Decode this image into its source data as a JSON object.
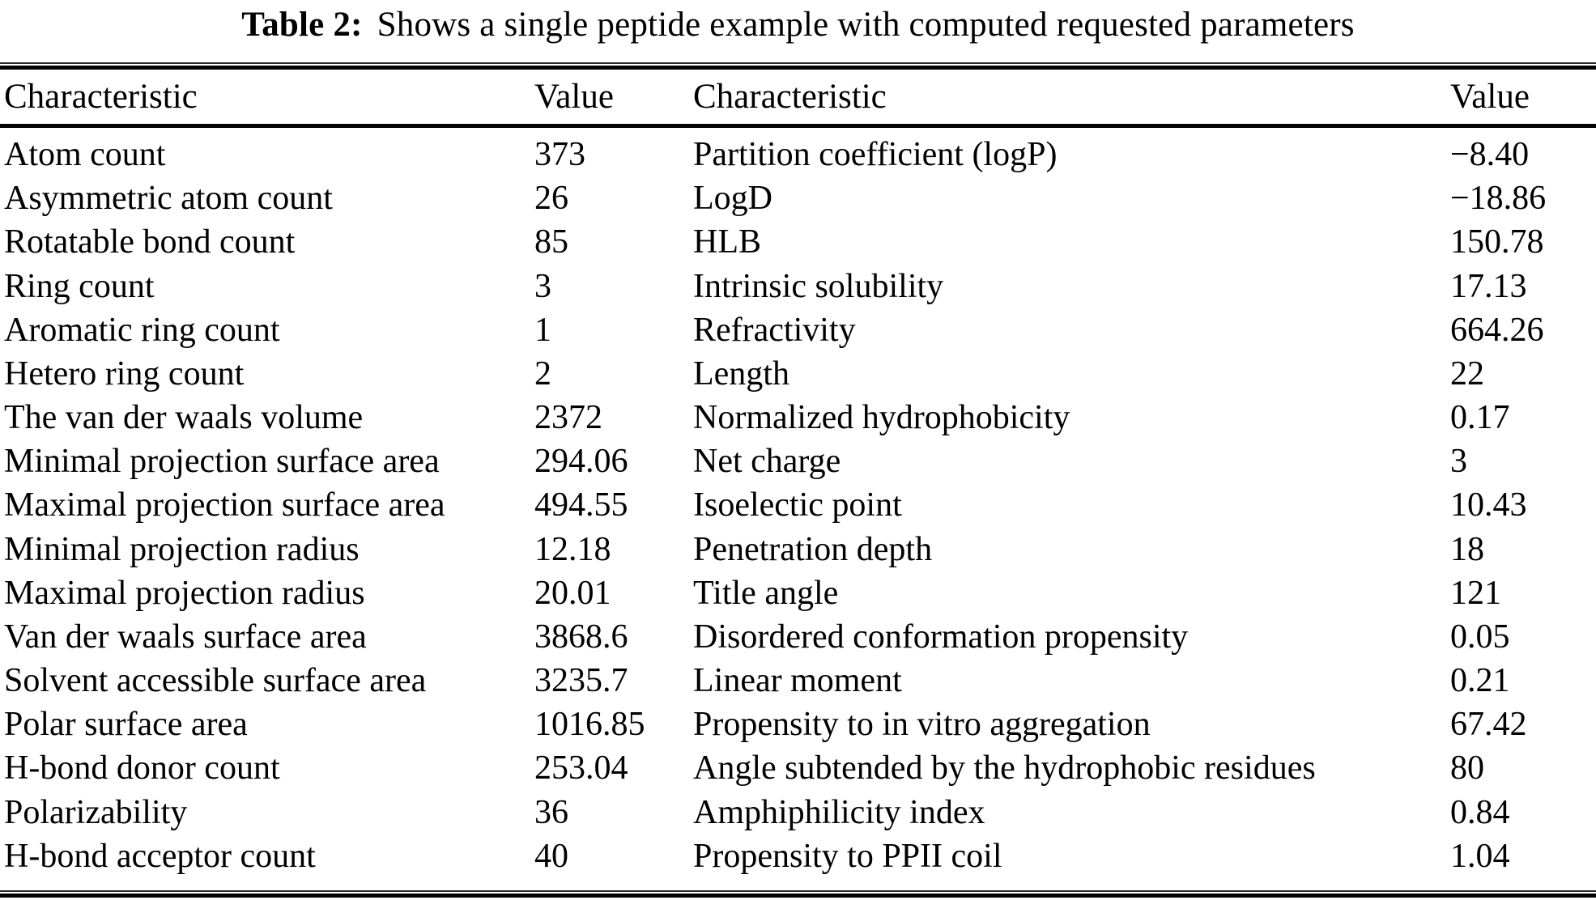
{
  "title": {
    "label": "Table 2:",
    "text": "Shows a single peptide example with computed requested parameters"
  },
  "header": {
    "col1_characteristic": "Characteristic",
    "col1_value": "Value",
    "col2_characteristic": "Characteristic",
    "col2_value": "Value"
  },
  "rows": [
    {
      "c1": "Atom count",
      "v1": "373",
      "c2": "Partition coefficient (logP)",
      "v2": "−8.40"
    },
    {
      "c1": "Asymmetric atom count",
      "v1": "26",
      "c2": "LogD",
      "v2": "−18.86"
    },
    {
      "c1": "Rotatable bond count",
      "v1": "85",
      "c2": "HLB",
      "v2": "150.78"
    },
    {
      "c1": "Ring count",
      "v1": "3",
      "c2": "Intrinsic solubility",
      "v2": "17.13"
    },
    {
      "c1": "Aromatic ring count",
      "v1": "1",
      "c2": "Refractivity",
      "v2": "664.26"
    },
    {
      "c1": "Hetero ring count",
      "v1": "2",
      "c2": "Length",
      "v2": "22"
    },
    {
      "c1": "The van der waals volume",
      "v1": "2372",
      "c2": "Normalized hydrophobicity",
      "v2": "0.17"
    },
    {
      "c1": "Minimal projection surface area",
      "v1": "294.06",
      "c2": "Net charge",
      "v2": "3"
    },
    {
      "c1": "Maximal projection surface area",
      "v1": "494.55",
      "c2": "Isoelectic point",
      "v2": "10.43"
    },
    {
      "c1": "Minimal projection radius",
      "v1": "12.18",
      "c2": "Penetration depth",
      "v2": "18"
    },
    {
      "c1": "Maximal projection radius",
      "v1": "20.01",
      "c2": "Title angle",
      "v2": "121"
    },
    {
      "c1": "Van der waals surface area",
      "v1": "3868.6",
      "c2": "Disordered conformation propensity",
      "v2": "0.05"
    },
    {
      "c1": "Solvent accessible surface area",
      "v1": "3235.7",
      "c2": "Linear moment",
      "v2": "0.21"
    },
    {
      "c1": "Polar surface area",
      "v1": "1016.85",
      "c2": "Propensity to in vitro aggregation",
      "v2": "67.42"
    },
    {
      "c1": "H-bond donor count",
      "v1": "253.04",
      "c2": "Angle subtended by the hydrophobic residues",
      "v2": "80"
    },
    {
      "c1": "Polarizability",
      "v1": "36",
      "c2": "Amphiphilicity index",
      "v2": "0.84"
    },
    {
      "c1": "H-bond acceptor count",
      "v1": "40",
      "c2": "Propensity to PPII coil",
      "v2": "1.04"
    }
  ],
  "colors": {
    "text": "#000000",
    "background": "#ffffff",
    "rule": "#000000"
  }
}
